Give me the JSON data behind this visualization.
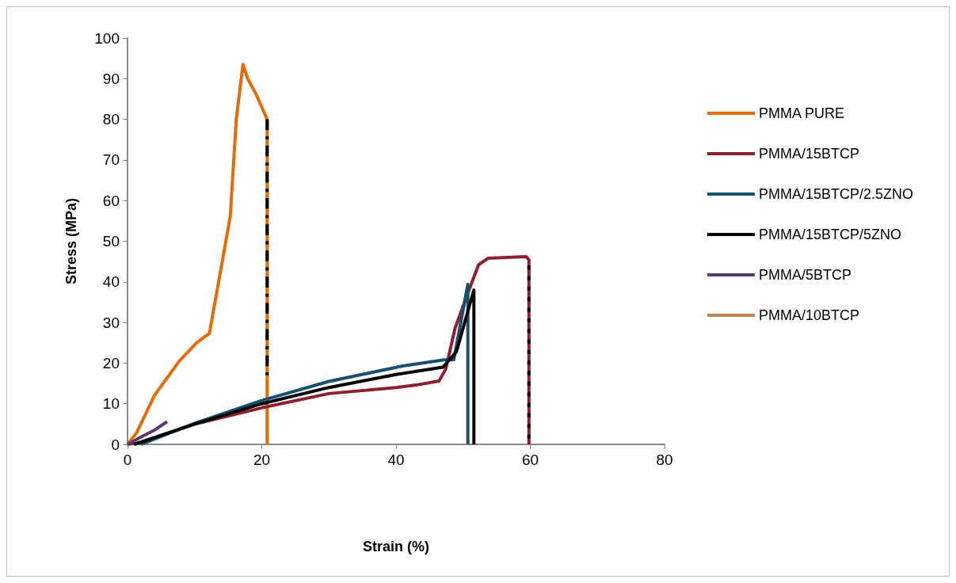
{
  "chart_data": {
    "type": "line",
    "xlabel": "Strain (%)",
    "ylabel": "Stress (MPa)",
    "xlim": [
      0,
      80
    ],
    "xticks": [
      0,
      20,
      40,
      60,
      80
    ],
    "ylim": [
      0,
      100
    ],
    "yticks": [
      0,
      10,
      20,
      30,
      40,
      50,
      60,
      70,
      80,
      90,
      100
    ],
    "grid": false,
    "legend": "right",
    "marker": "none",
    "series": [
      {
        "name": "PMMA PURE",
        "color": "#e36c09",
        "x": [
          0,
          1.4,
          4,
          7.7,
          10.3,
          12.2,
          15.3,
          16.2,
          17.2,
          17.9,
          19.2,
          20.8,
          20.8
        ],
        "values": [
          0,
          3,
          12,
          20.5,
          25,
          27.3,
          56,
          80,
          93.5,
          90,
          86,
          80,
          0
        ]
      },
      {
        "name": "PMMA/15BTCP",
        "color": "#8e1f2e",
        "x": [
          0,
          2,
          10,
          20,
          30,
          40,
          43,
          46.4,
          47.4,
          48.8,
          51.1,
          52.3,
          53.7,
          59.4,
          59.8,
          59.8
        ],
        "values": [
          0,
          0.5,
          5,
          9,
          12.5,
          14,
          14.6,
          15.6,
          18.5,
          28.6,
          39,
          44.2,
          45.8,
          46.2,
          45.4,
          0
        ]
      },
      {
        "name": "PMMA/15BTCP/2.5ZNO",
        "color": "#17506e",
        "x": [
          2,
          10,
          20,
          30,
          41,
          47.2,
          48.6,
          50.7,
          50.7
        ],
        "values": [
          0,
          5.2,
          10.8,
          15.5,
          19.3,
          20.8,
          20.8,
          39.4,
          0
        ]
      },
      {
        "name": "PMMA/15BTCP/5ZNO",
        "color": "#000000",
        "x": [
          1,
          10,
          20,
          30,
          40,
          47,
          49,
          51.6,
          51.6
        ],
        "values": [
          0,
          5,
          10,
          14,
          17.2,
          19,
          22.8,
          38,
          0
        ]
      },
      {
        "name": "PMMA/5BTCP",
        "color": "#5c3a6e",
        "x": [
          0,
          2,
          4,
          5.9
        ],
        "values": [
          0,
          1.8,
          3.5,
          5.6
        ]
      },
      {
        "name": "PMMA/10BTCP",
        "color": "#b8884a"
      },
      {
        "color": "#000000",
        "line_style": "dashed",
        "x": [
          20.8,
          20.8
        ],
        "values": [
          80,
          17
        ]
      },
      {
        "color": "#000000",
        "line_style": "dotted",
        "x": [
          59.8,
          59.8
        ],
        "values": [
          44,
          1.4
        ]
      }
    ]
  }
}
